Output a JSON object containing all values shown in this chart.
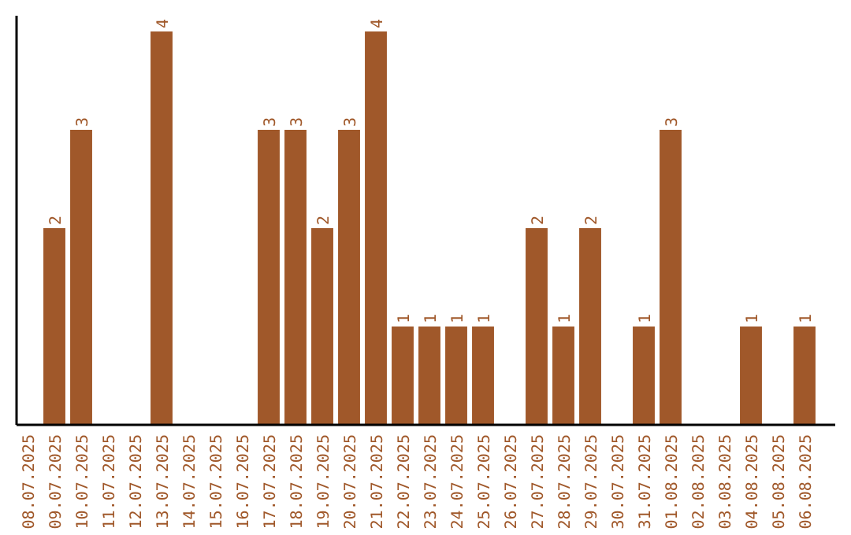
{
  "chart_data": {
    "type": "bar",
    "categories": [
      "08.07.2025",
      "09.07.2025",
      "10.07.2025",
      "11.07.2025",
      "12.07.2025",
      "13.07.2025",
      "14.07.2025",
      "15.07.2025",
      "16.07.2025",
      "17.07.2025",
      "18.07.2025",
      "19.07.2025",
      "20.07.2025",
      "21.07.2025",
      "22.07.2025",
      "23.07.2025",
      "24.07.2025",
      "25.07.2025",
      "26.07.2025",
      "27.07.2025",
      "28.07.2025",
      "29.07.2025",
      "30.07.2025",
      "31.07.2025",
      "01.08.2025",
      "02.08.2025",
      "03.08.2025",
      "04.08.2025",
      "05.08.2025",
      "06.08.2025"
    ],
    "values": [
      0,
      2,
      3,
      0,
      0,
      4,
      0,
      0,
      0,
      3,
      3,
      2,
      3,
      4,
      1,
      1,
      1,
      1,
      0,
      2,
      1,
      2,
      0,
      1,
      3,
      0,
      0,
      1,
      0,
      1
    ],
    "value_labels": [
      null,
      "2",
      "3",
      null,
      null,
      "4",
      null,
      null,
      null,
      "3",
      "3",
      "2",
      "3",
      "4",
      "1",
      "1",
      "1",
      "1",
      null,
      "2",
      "1",
      "2",
      null,
      "1",
      "3",
      null,
      null,
      "1",
      null,
      "1"
    ],
    "color": "#a0582a",
    "ylim": [
      0,
      4.16
    ],
    "tick_labels": "x"
  }
}
